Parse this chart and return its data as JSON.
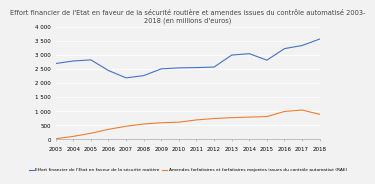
{
  "title_line1": "Effort financier de l'Etat en faveur de la sécurité routière et amendes issues du contrôle automatisé 2003-",
  "title_line2": "2018 (en millions d'euros)",
  "years": [
    2003,
    2004,
    2005,
    2006,
    2007,
    2008,
    2009,
    2010,
    2011,
    2012,
    2013,
    2014,
    2015,
    2016,
    2017,
    2018
  ],
  "effort_etat": [
    2700,
    2790,
    2830,
    2450,
    2190,
    2270,
    2510,
    2545,
    2555,
    2575,
    3000,
    3050,
    2820,
    3230,
    3340,
    3570
  ],
  "amendes": [
    25,
    110,
    220,
    360,
    470,
    550,
    595,
    615,
    695,
    745,
    775,
    795,
    815,
    995,
    1045,
    895
  ],
  "blue_color": "#4472C4",
  "orange_color": "#ED7D31",
  "background_color": "#F2F2F2",
  "grid_color": "#FFFFFF",
  "ylim": [
    0,
    4000
  ],
  "yticks": [
    0,
    500,
    1000,
    1500,
    2000,
    2500,
    3000,
    3500,
    4000
  ],
  "legend_blue": "Effort financier de l'Etat en faveur de la sécurité routière",
  "legend_orange": "Amendes forfaitaires et forfaitaires majorées issues du contrôle automatisé (RAE)",
  "title_fontsize": 4.8,
  "tick_fontsize": 4.0,
  "legend_fontsize": 3.2
}
